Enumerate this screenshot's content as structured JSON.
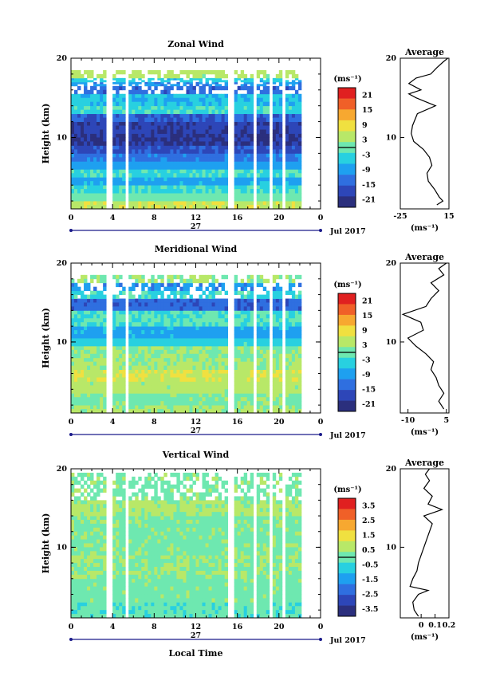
{
  "chart_data": [
    {
      "type": "heatmap",
      "title": "Zonal Wind",
      "ylabel": "Height (km)",
      "xlabel": "",
      "x_ticks": [
        "0",
        "4",
        "8",
        "12",
        "16",
        "20",
        "0"
      ],
      "date_label": "27",
      "month_label": "Jul 2017",
      "y_ticks": [
        "10",
        "20"
      ],
      "ylim": [
        1,
        20
      ],
      "xlim": [
        0,
        24
      ],
      "colorbar": {
        "unit": "(ms⁻¹)",
        "ticks": [
          "21",
          "15",
          "9",
          "3",
          "-3",
          "-9",
          "-15",
          "-21"
        ],
        "range": [
          -24,
          24
        ]
      },
      "profile": {
        "title": "Average",
        "x_ticks": [
          "-25",
          "15"
        ],
        "xlim": [
          -25,
          15
        ],
        "unit": "(ms⁻¹)",
        "y_ticks": [
          "10",
          "20"
        ],
        "points": [
          [
            5,
            1.5
          ],
          [
            10,
            2
          ],
          [
            7,
            2.5
          ],
          [
            3,
            3.5
          ],
          [
            -2,
            4.5
          ],
          [
            -3,
            5.5
          ],
          [
            1,
            6.5
          ],
          [
            -1,
            7.5
          ],
          [
            -6,
            8.5
          ],
          [
            -14,
            9.5
          ],
          [
            -16,
            10.5
          ],
          [
            -15,
            11.5
          ],
          [
            -11,
            13
          ],
          [
            4,
            14
          ],
          [
            -12,
            15
          ],
          [
            -18,
            15.5
          ],
          [
            -8,
            16
          ],
          [
            -18,
            16.8
          ],
          [
            -12,
            17.5
          ],
          [
            0,
            18
          ],
          [
            5,
            18.8
          ],
          [
            10,
            19.5
          ],
          [
            14,
            20
          ]
        ]
      },
      "bands": [
        {
          "y": [
            1,
            2
          ],
          "value": 6
        },
        {
          "y": [
            2,
            3
          ],
          "value": 0
        },
        {
          "y": [
            3,
            4
          ],
          "value": -3
        },
        {
          "y": [
            4,
            5
          ],
          "value": -8
        },
        {
          "y": [
            5,
            6
          ],
          "value": -3
        },
        {
          "y": [
            6,
            7
          ],
          "value": -9
        },
        {
          "y": [
            7,
            8
          ],
          "value": -12
        },
        {
          "y": [
            8,
            9
          ],
          "value": -16
        },
        {
          "y": [
            9,
            10.5
          ],
          "value": -20
        },
        {
          "y": [
            10.5,
            12
          ],
          "value": -19
        },
        {
          "y": [
            12,
            13
          ],
          "value": -15
        },
        {
          "y": [
            13,
            14
          ],
          "value": -3
        },
        {
          "y": [
            14,
            15.5
          ],
          "value": -6
        },
        {
          "y": [
            15.5,
            16.5
          ],
          "value": -14
        },
        {
          "y": [
            16.5,
            17
          ],
          "value": -10
        },
        {
          "y": [
            17,
            17.5
          ],
          "value": -5
        },
        {
          "y": [
            17.5,
            18.5
          ],
          "value": 4
        }
      ]
    },
    {
      "type": "heatmap",
      "title": "Meridional Wind",
      "ylabel": "Height (km)",
      "xlabel": "",
      "x_ticks": [
        "0",
        "4",
        "8",
        "12",
        "16",
        "20",
        "0"
      ],
      "date_label": "27",
      "month_label": "Jul 2017",
      "y_ticks": [
        "10",
        "20"
      ],
      "ylim": [
        1,
        20
      ],
      "xlim": [
        0,
        24
      ],
      "colorbar": {
        "unit": "(ms⁻¹)",
        "ticks": [
          "21",
          "15",
          "9",
          "3",
          "-3",
          "-9",
          "-15",
          "-21"
        ],
        "range": [
          -24,
          24
        ]
      },
      "profile": {
        "title": "Average",
        "x_ticks": [
          "-10",
          "5"
        ],
        "xlim": [
          -13,
          6
        ],
        "unit": "(ms⁻¹)",
        "y_ticks": [
          "10",
          "20"
        ],
        "points": [
          [
            4,
            1.5
          ],
          [
            2,
            2.5
          ],
          [
            4,
            3.5
          ],
          [
            2,
            4.5
          ],
          [
            1,
            5.5
          ],
          [
            -1,
            6.5
          ],
          [
            0,
            7.5
          ],
          [
            -3,
            8.5
          ],
          [
            -7,
            9.5
          ],
          [
            -10,
            10.5
          ],
          [
            -4,
            11.5
          ],
          [
            -5,
            12.5
          ],
          [
            -12,
            13.5
          ],
          [
            -3,
            14.5
          ],
          [
            -1,
            15.5
          ],
          [
            2,
            16.5
          ],
          [
            -1,
            17.5
          ],
          [
            4,
            18.5
          ],
          [
            2,
            19.3
          ],
          [
            5,
            20
          ]
        ]
      },
      "bands": [
        {
          "y": [
            1,
            2
          ],
          "value": 3
        },
        {
          "y": [
            2,
            3.5
          ],
          "value": 1
        },
        {
          "y": [
            3.5,
            5
          ],
          "value": 4
        },
        {
          "y": [
            5,
            6.5
          ],
          "value": 6
        },
        {
          "y": [
            6.5,
            8
          ],
          "value": 3
        },
        {
          "y": [
            8,
            9.5
          ],
          "value": 2
        },
        {
          "y": [
            9.5,
            10.5
          ],
          "value": -4
        },
        {
          "y": [
            10.5,
            12
          ],
          "value": -8
        },
        {
          "y": [
            12,
            14
          ],
          "value": -2
        },
        {
          "y": [
            14,
            15.5
          ],
          "value": -14
        },
        {
          "y": [
            15.5,
            16.5
          ],
          "value": -3
        },
        {
          "y": [
            16.5,
            17.5
          ],
          "value": -10
        },
        {
          "y": [
            17.5,
            18.5
          ],
          "value": 2
        }
      ]
    },
    {
      "type": "heatmap",
      "title": "Vertical Wind",
      "ylabel": "Height (km)",
      "xlabel": "Local Time",
      "x_ticks": [
        "0",
        "4",
        "8",
        "12",
        "16",
        "20",
        "0"
      ],
      "date_label": "27",
      "month_label": "Jul 2017",
      "y_ticks": [
        "10",
        "20"
      ],
      "ylim": [
        1,
        20
      ],
      "xlim": [
        0,
        24
      ],
      "colorbar": {
        "unit": "(ms⁻¹)",
        "ticks": [
          "3.5",
          "2.5",
          "1.5",
          "0.5",
          "-0.5",
          "-1.5",
          "-2.5",
          "-3.5"
        ],
        "range": [
          -4,
          4
        ]
      },
      "profile": {
        "title": "Average",
        "x_ticks": [
          "0",
          "0.1",
          "0.2"
        ],
        "xlim": [
          -0.15,
          0.2
        ],
        "unit": "(ms⁻¹)",
        "y_ticks": [
          "10",
          "20"
        ],
        "points": [
          [
            -0.02,
            1.2
          ],
          [
            -0.05,
            2
          ],
          [
            -0.06,
            3
          ],
          [
            -0.02,
            4
          ],
          [
            0.05,
            4.5
          ],
          [
            -0.08,
            5
          ],
          [
            -0.06,
            6
          ],
          [
            -0.03,
            7
          ],
          [
            -0.02,
            8
          ],
          [
            0,
            9
          ],
          [
            0.02,
            10
          ],
          [
            0.04,
            11
          ],
          [
            0.06,
            12
          ],
          [
            0.08,
            13
          ],
          [
            0.02,
            14
          ],
          [
            0.15,
            14.8
          ],
          [
            0.05,
            15.5
          ],
          [
            0.08,
            16.5
          ],
          [
            0.02,
            17.5
          ],
          [
            0.06,
            18.5
          ],
          [
            0.03,
            19.3
          ],
          [
            0.06,
            20
          ]
        ]
      },
      "bands": [
        {
          "y": [
            1,
            3
          ],
          "value": -0.2
        },
        {
          "y": [
            3,
            6
          ],
          "value": 0.1
        },
        {
          "y": [
            6,
            9
          ],
          "value": 0.3
        },
        {
          "y": [
            9,
            14
          ],
          "value": 0.2
        },
        {
          "y": [
            14,
            16
          ],
          "value": 0.5
        },
        {
          "y": [
            16,
            19.5
          ],
          "value": 0.2
        }
      ]
    }
  ]
}
